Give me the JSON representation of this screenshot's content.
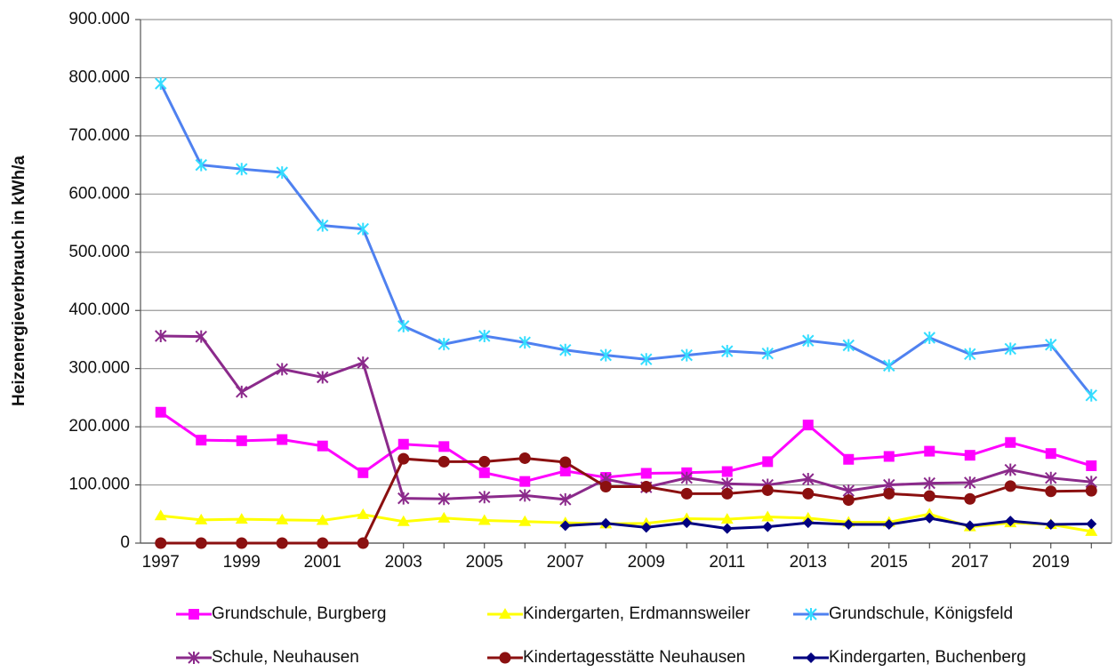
{
  "chart_data": {
    "type": "line",
    "y_label": "Heizenergieverbrauch in kWh/a",
    "x": [
      1997,
      1998,
      1999,
      2000,
      2001,
      2002,
      2003,
      2004,
      2005,
      2006,
      2007,
      2008,
      2009,
      2010,
      2011,
      2012,
      2013,
      2014,
      2015,
      2016,
      2017,
      2018,
      2019,
      2020
    ],
    "xlim": [
      1996.5,
      2020.5
    ],
    "xticks": [
      1997,
      1999,
      2001,
      2003,
      2005,
      2007,
      2009,
      2011,
      2013,
      2015,
      2017,
      2019
    ],
    "ylim": [
      0,
      900000
    ],
    "yticks": [
      0,
      {
        "value": 100000,
        "label": "100.000"
      },
      {
        "value": 200000,
        "label": "200.000"
      },
      {
        "value": 300000,
        "label": "300.000"
      },
      {
        "value": 400000,
        "label": "400.000"
      },
      {
        "value": 500000,
        "label": "500.000"
      },
      {
        "value": 600000,
        "label": "600.000"
      },
      {
        "value": 700000,
        "label": "700.000"
      },
      {
        "value": 800000,
        "label": "800.000"
      },
      {
        "value": 900000,
        "label": "900.000"
      }
    ],
    "grid": true,
    "series": [
      {
        "name": "Grundschule, Burgberg",
        "color": "#ff00ff",
        "marker": "square",
        "values": [
          225000,
          177000,
          176000,
          178000,
          167000,
          121000,
          170000,
          166000,
          121000,
          106000,
          124000,
          113000,
          120000,
          121000,
          123000,
          140000,
          203000,
          144000,
          149000,
          158000,
          151000,
          173000,
          154000,
          133000
        ]
      },
      {
        "name": "Kindergarten, Erdmannsweiler",
        "color": "#ffff00",
        "marker": "triangle",
        "values": [
          47000,
          40000,
          41000,
          40000,
          39000,
          49000,
          37000,
          43000,
          39000,
          37000,
          35000,
          33000,
          34000,
          42000,
          41000,
          45000,
          43000,
          36000,
          36000,
          50000,
          28000,
          35000,
          32000,
          20000
        ]
      },
      {
        "name": "Grundschule, Königsfeld",
        "color": "#4f81f0",
        "marker_color": "#33ddff",
        "marker": "star",
        "values": [
          790000,
          650000,
          643000,
          637000,
          546000,
          540000,
          373000,
          342000,
          356000,
          345000,
          332000,
          323000,
          316000,
          323000,
          330000,
          326000,
          348000,
          340000,
          305000,
          353000,
          325000,
          334000,
          341000,
          254000
        ]
      },
      {
        "name": "Schule, Neuhausen",
        "color": "#8b2a8b",
        "marker": "star",
        "values": [
          356000,
          355000,
          260000,
          299000,
          285000,
          310000,
          77000,
          76000,
          79000,
          82000,
          75000,
          110000,
          96000,
          112000,
          102000,
          100000,
          110000,
          90000,
          100000,
          103000,
          104000,
          126000,
          112000,
          105000
        ]
      },
      {
        "name": "Kindertagesstätte Neuhausen",
        "color": "#8b1010",
        "marker": "circle",
        "values": [
          0,
          0,
          0,
          0,
          0,
          0,
          145000,
          140000,
          140000,
          146000,
          139000,
          97000,
          97000,
          85000,
          85000,
          91000,
          85000,
          74000,
          85000,
          81000,
          76000,
          98000,
          89000,
          90000
        ]
      },
      {
        "name": "Kindergarten, Buchenberg",
        "color": "#000080",
        "marker": "diamond",
        "values": [
          null,
          null,
          null,
          null,
          null,
          null,
          null,
          null,
          null,
          null,
          30000,
          34000,
          27000,
          35000,
          25000,
          28000,
          35000,
          32000,
          32000,
          43000,
          30000,
          38000,
          32000,
          33000
        ]
      }
    ]
  }
}
